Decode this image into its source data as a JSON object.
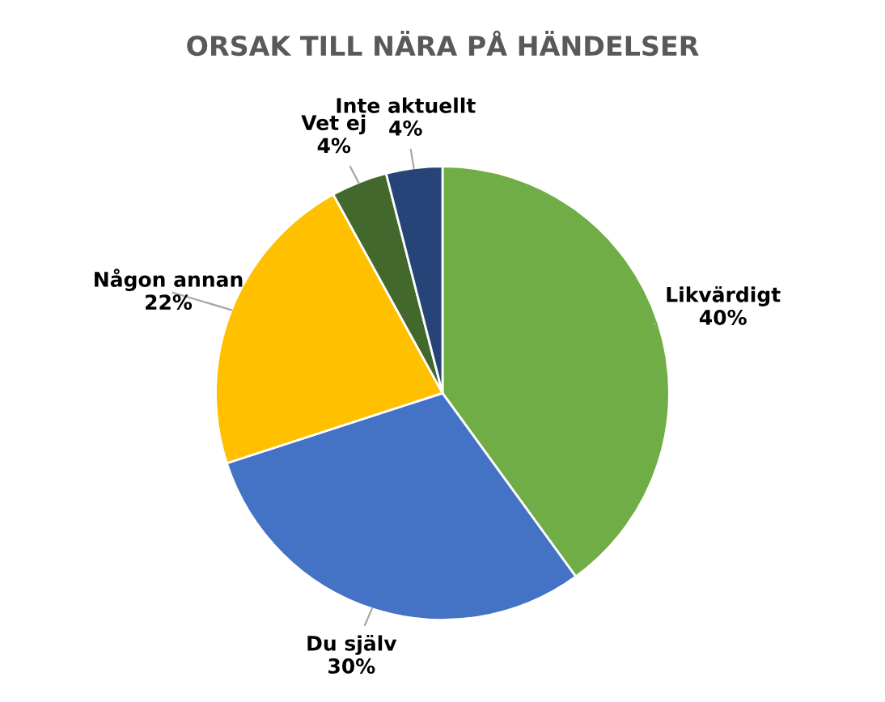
{
  "chart_data": {
    "type": "pie",
    "title": "ORSAK TILL NÄRA PÅ HÄNDELSER",
    "categories": [
      "Likvärdigt",
      "Du själv",
      "Någon annan",
      "Vet ej",
      "Inte aktuellt"
    ],
    "values": [
      40,
      30,
      22,
      4,
      4
    ],
    "colors": [
      "#70ad47",
      "#4472c4",
      "#ffc000",
      "#43682b",
      "#264478"
    ],
    "value_labels": [
      "40%",
      "30%",
      "22%",
      "4%",
      "4%"
    ],
    "legend": false
  }
}
